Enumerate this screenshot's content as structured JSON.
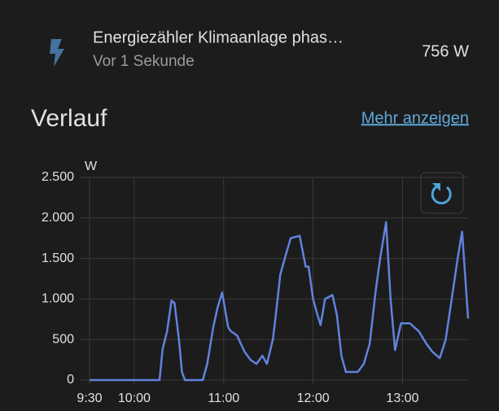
{
  "entity": {
    "name": "Energiezähler Klimaanlage phas…",
    "last_changed": "Vor 1 Sekunde",
    "state": "756 W"
  },
  "history": {
    "title": "Verlauf",
    "link": "Mehr anzeigen"
  },
  "chart_data": {
    "type": "line",
    "ylabel": "W",
    "color": "#6183de",
    "grid": true,
    "x": [
      570,
      617,
      619,
      622,
      625,
      627,
      630,
      632,
      634,
      646,
      649,
      653,
      656,
      659,
      663,
      665,
      669,
      674,
      678,
      682,
      686,
      689,
      693,
      695,
      698,
      701,
      705,
      711,
      715,
      717,
      720,
      723,
      725,
      728,
      733,
      736,
      739,
      742,
      750,
      754,
      758,
      762,
      765,
      769,
      772,
      775,
      779,
      785,
      791,
      796,
      800,
      805,
      809,
      813,
      817,
      820,
      824
    ],
    "values": [
      0,
      0,
      380,
      600,
      980,
      950,
      500,
      100,
      0,
      0,
      200,
      650,
      900,
      1080,
      650,
      600,
      550,
      350,
      250,
      200,
      300,
      200,
      500,
      800,
      1300,
      1500,
      1750,
      1780,
      1400,
      1400,
      1000,
      800,
      680,
      1000,
      1050,
      800,
      300,
      100,
      100,
      200,
      450,
      1100,
      1500,
      1950,
      1000,
      370,
      700,
      700,
      600,
      450,
      350,
      270,
      500,
      1000,
      1500,
      1830,
      760
    ],
    "xlim": [
      570,
      824
    ],
    "xticks": [
      {
        "value": 570,
        "label": "9:30"
      },
      {
        "value": 600,
        "label": "10:00"
      },
      {
        "value": 660,
        "label": "11:00"
      },
      {
        "value": 720,
        "label": "12:00"
      },
      {
        "value": 780,
        "label": "13:00"
      }
    ],
    "ylim": [
      0,
      2500
    ],
    "yticks": [
      0,
      500,
      {
        "value": 1000,
        "label": "1.000"
      },
      {
        "value": 1500,
        "label": "1.500"
      },
      {
        "value": 2000,
        "label": "2.000"
      },
      {
        "value": 2500,
        "label": "2.500"
      }
    ]
  }
}
